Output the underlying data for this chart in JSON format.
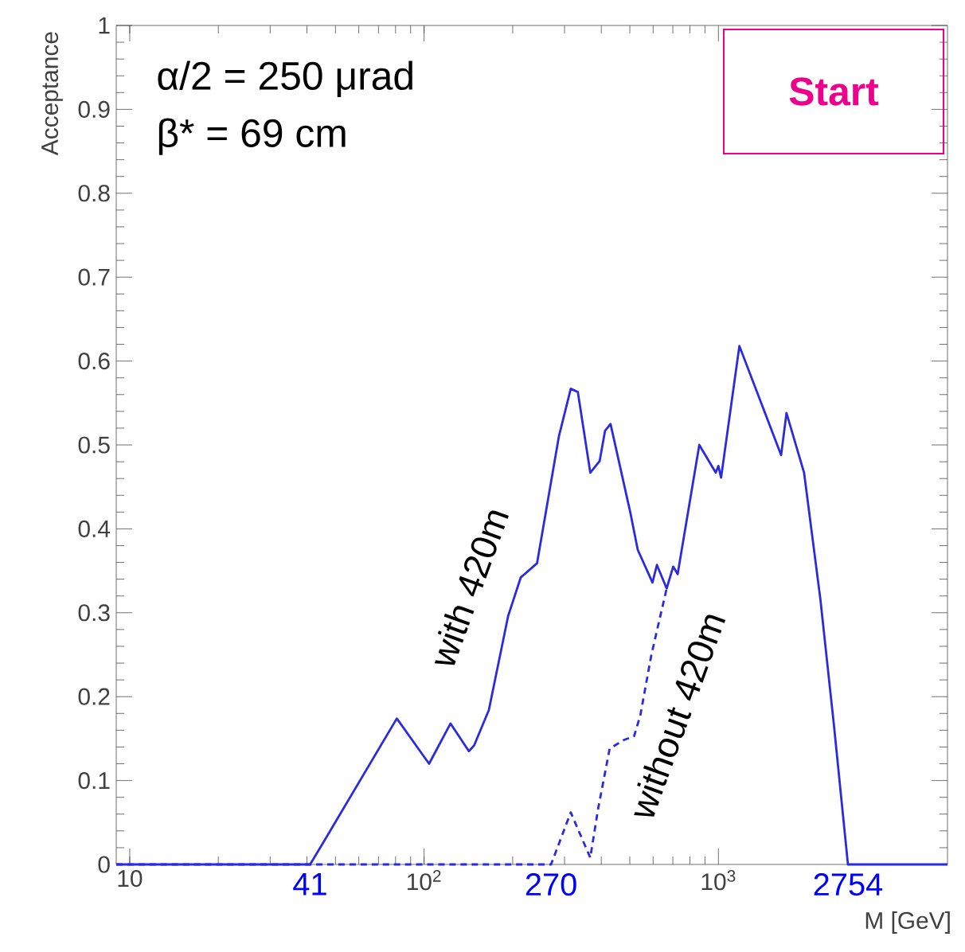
{
  "chart_data": {
    "type": "line",
    "log": "x",
    "xlabel": "M [GeV]",
    "ylabel": "Acceptance",
    "xlim": [
      9,
      6000
    ],
    "ylim": [
      0,
      1
    ],
    "xticks": [
      {
        "value": 10,
        "label": "10"
      },
      {
        "value": 100,
        "label": "10$^{2}$"
      },
      {
        "value": 1000,
        "label": "10$^{3}$"
      }
    ],
    "yticks": [
      {
        "value": 0,
        "label": "0"
      },
      {
        "value": 0.1,
        "label": "0.1"
      },
      {
        "value": 0.2,
        "label": "0.2"
      },
      {
        "value": 0.3,
        "label": "0.3"
      },
      {
        "value": 0.4,
        "label": "0.4"
      },
      {
        "value": 0.5,
        "label": "0.5"
      },
      {
        "value": 0.6,
        "label": "0.6"
      },
      {
        "value": 0.7,
        "label": "0.7"
      },
      {
        "value": 0.8,
        "label": "0.8"
      },
      {
        "value": 0.9,
        "label": "0.9"
      },
      {
        "value": 1,
        "label": "1"
      }
    ],
    "grid": false,
    "legend": false,
    "marker": "none",
    "series": [
      {
        "name": "with  420m",
        "color": "#2a2ae0",
        "line_style": "solid",
        "x": [
          9,
          41,
          44.9,
          80.8,
          104,
          123,
          142,
          148,
          166,
          193,
          213,
          242,
          287,
          315,
          333,
          367,
          395,
          412,
          430,
          503,
          532,
          597,
          618,
          667,
          702,
          727,
          861,
          979,
          1000,
          1021,
          1178,
          1633,
          1703,
          1954,
          2220,
          2470,
          2754,
          6000
        ],
        "values": [
          0,
          0,
          0.023,
          0.174,
          0.12,
          0.168,
          0.135,
          0.142,
          0.184,
          0.296,
          0.342,
          0.359,
          0.51,
          0.567,
          0.563,
          0.467,
          0.481,
          0.517,
          0.525,
          0.418,
          0.375,
          0.336,
          0.357,
          0.329,
          0.355,
          0.346,
          0.5,
          0.467,
          0.475,
          0.461,
          0.618,
          0.488,
          0.538,
          0.467,
          0.316,
          0.165,
          0,
          0
        ]
      },
      {
        "name": "without  420m",
        "color": "#2a2ae0",
        "line_style": "dashed",
        "x": [
          9,
          270,
          315,
          367,
          390,
          427,
          475,
          517,
          543,
          592,
          667
        ],
        "values": [
          0,
          0,
          0.062,
          0.008,
          0.066,
          0.138,
          0.148,
          0.153,
          0.178,
          0.25,
          0.329
        ]
      }
    ],
    "annotations": [
      "α/2 = 250 μrad",
      "β* = 69 cm",
      "Start",
      {
        "text": "41",
        "x": 41,
        "y": 0
      },
      {
        "text": "270",
        "x": 270,
        "y": 0
      },
      {
        "text": "2754",
        "x": 2754,
        "y": 0
      }
    ]
  }
}
